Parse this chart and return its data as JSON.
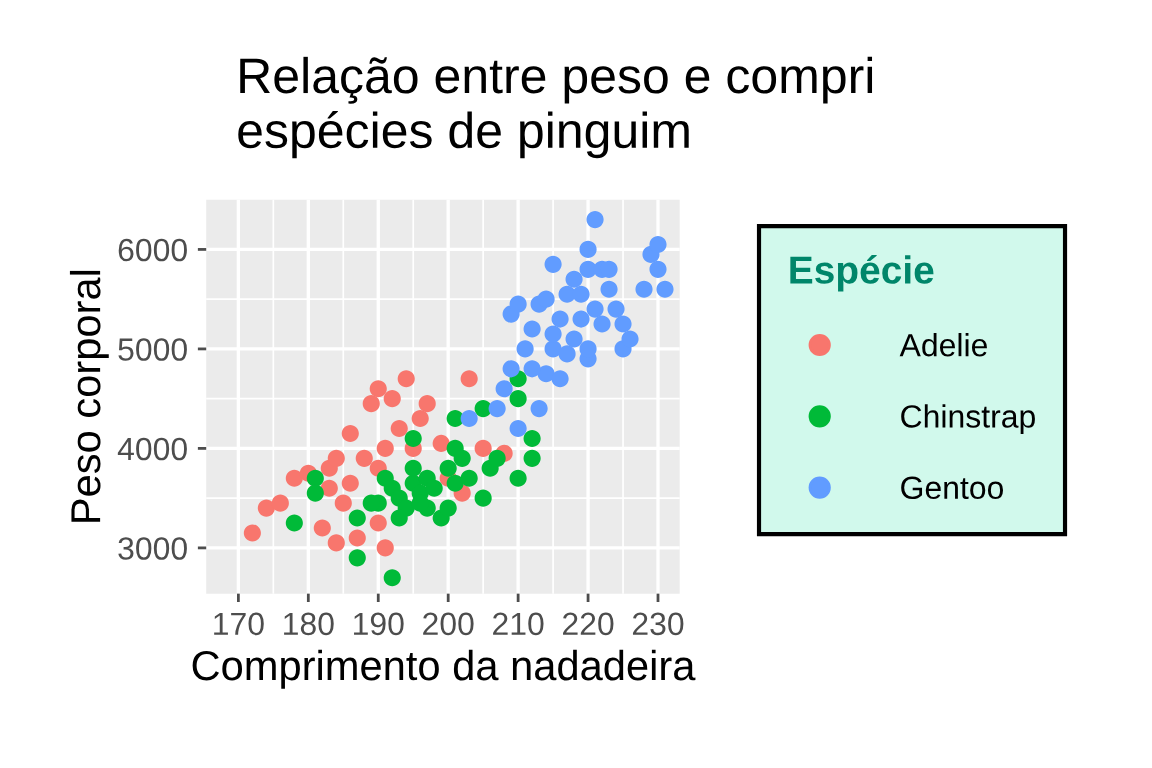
{
  "chart_data": {
    "type": "scatter",
    "title": "Relação entre peso e compri\nespécies de pinguim",
    "xlabel": "Comprimento da nadadeira",
    "ylabel": "Peso corporal",
    "legend_title": "Espécie",
    "legend": "right",
    "grid": true,
    "marker": "circle",
    "xlim": [
      165.4,
      233.1
    ],
    "ylim": [
      2540,
      6500
    ],
    "xticks": [
      170,
      180,
      190,
      200,
      210,
      220,
      230
    ],
    "yticks": [
      3000,
      4000,
      5000,
      6000
    ],
    "series": [
      {
        "name": "Adelie",
        "color": "#f8766d",
        "x": [
          172,
          174,
          176,
          178,
          180,
          182,
          183,
          184,
          184,
          185,
          186,
          186,
          188,
          189,
          190,
          190,
          191,
          192,
          193,
          195,
          196,
          197,
          199,
          200,
          202,
          203,
          205,
          208,
          191,
          187,
          183,
          194,
          190
        ],
        "values": [
          3150,
          3400,
          3450,
          3700,
          3750,
          3200,
          3800,
          3050,
          3900,
          3450,
          3650,
          4150,
          3900,
          4450,
          3800,
          3250,
          4000,
          4500,
          4200,
          4000,
          4300,
          4450,
          4050,
          3700,
          3550,
          4700,
          4000,
          3950,
          3000,
          3100,
          3600,
          4700,
          4600
        ]
      },
      {
        "name": "Chinstrap",
        "color": "#00ba38",
        "x": [
          178,
          181,
          181,
          187,
          187,
          190,
          192,
          192,
          193,
          194,
          195,
          195,
          195,
          196,
          197,
          197,
          198,
          199,
          200,
          200,
          201,
          201,
          201,
          202,
          203,
          205,
          205,
          206,
          207,
          210,
          210,
          212,
          212,
          210,
          196,
          193,
          191,
          189
        ],
        "values": [
          3250,
          3700,
          3550,
          2900,
          3300,
          3450,
          2700,
          3600,
          3500,
          3400,
          3650,
          4100,
          3800,
          3550,
          3400,
          3700,
          3600,
          3300,
          3400,
          3800,
          3650,
          4000,
          4300,
          3900,
          3700,
          4400,
          3500,
          3800,
          3900,
          3700,
          4500,
          4100,
          3900,
          4700,
          3450,
          3300,
          3700,
          3450
        ]
      },
      {
        "name": "Gentoo",
        "color": "#619cff",
        "x": [
          203,
          207,
          208,
          209,
          210,
          211,
          212,
          213,
          213,
          214,
          214,
          215,
          215,
          216,
          216,
          217,
          217,
          218,
          218,
          219,
          219,
          220,
          220,
          220,
          221,
          221,
          222,
          222,
          223,
          224,
          225,
          225,
          226,
          228,
          229,
          230,
          230,
          231,
          215,
          220,
          223,
          212,
          209,
          210
        ],
        "values": [
          4300,
          4400,
          4600,
          4800,
          4200,
          5000,
          5200,
          4400,
          5450,
          4750,
          5500,
          5000,
          5150,
          4700,
          5300,
          4950,
          5550,
          5100,
          5700,
          5300,
          5550,
          4900,
          5800,
          5000,
          6300,
          5400,
          5800,
          5250,
          5600,
          5400,
          5000,
          5250,
          5100,
          5600,
          5950,
          5800,
          6050,
          5600,
          5850,
          6000,
          5800,
          4800,
          5350,
          5450
        ]
      }
    ]
  }
}
